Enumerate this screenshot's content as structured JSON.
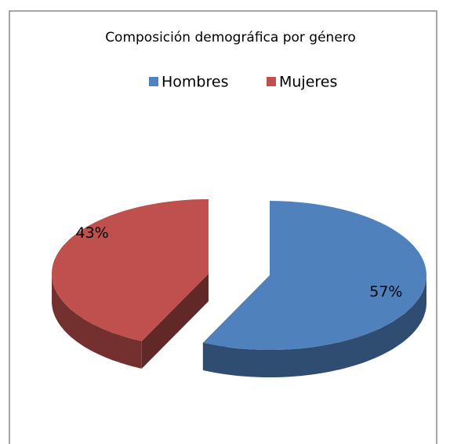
{
  "chart_data": {
    "type": "pie",
    "title": "Composición demográfica por género",
    "categories": [
      "Hombres",
      "Mujeres"
    ],
    "values": [
      57,
      43
    ],
    "value_labels": [
      "57%",
      "43%"
    ],
    "colors": [
      "#4f81bd",
      "#c0504d"
    ],
    "legend": "top"
  }
}
